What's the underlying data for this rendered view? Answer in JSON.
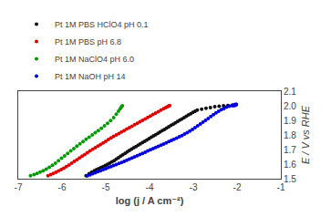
{
  "chart_data": {
    "type": "scatter",
    "xlabel": "log (j / A cm⁻²)",
    "ylabel": "E / V vs RHE",
    "xlim": [
      -7,
      -1
    ],
    "ylim": [
      1.5,
      2.1
    ],
    "xticks": [
      -7,
      -6,
      -5,
      -4,
      -3,
      -2,
      -1
    ],
    "yticks": [
      1.5,
      1.6,
      1.7,
      1.8,
      1.9,
      {
        "value": 2.0,
        "label": "2.0"
      },
      2.1
    ],
    "grid": false,
    "legend": "upper left",
    "series": [
      {
        "name": "Pt 1M PBS HClO4 pH 0.1",
        "color": "#111111",
        "x": [
          -5.45,
          -5.38,
          -5.32,
          -5.26,
          -5.21,
          -5.16,
          -5.11,
          -5.06,
          -5.01,
          -4.96,
          -4.91,
          -4.86,
          -4.81,
          -4.76,
          -4.71,
          -4.66,
          -4.61,
          -4.56,
          -4.51,
          -4.46,
          -4.41,
          -4.36,
          -4.31,
          -4.26,
          -4.21,
          -4.16,
          -4.11,
          -4.06,
          -4.01,
          -3.96,
          -3.91,
          -3.86,
          -3.81,
          -3.76,
          -3.71,
          -3.66,
          -3.61,
          -3.56,
          -3.51,
          -3.46,
          -3.41,
          -3.36,
          -3.31,
          -3.26,
          -3.21,
          -3.16,
          -3.11,
          -3.06,
          -3.01,
          -2.96,
          -2.91,
          -2.81,
          -2.71,
          -2.61,
          -2.51,
          -2.41,
          -2.31,
          -2.21,
          -2.11
        ],
        "values": [
          1.52,
          1.535,
          1.545,
          1.555,
          1.562,
          1.569,
          1.576,
          1.583,
          1.59,
          1.598,
          1.606,
          1.615,
          1.624,
          1.634,
          1.644,
          1.654,
          1.664,
          1.674,
          1.684,
          1.694,
          1.703,
          1.712,
          1.721,
          1.73,
          1.739,
          1.748,
          1.757,
          1.766,
          1.775,
          1.784,
          1.793,
          1.802,
          1.811,
          1.82,
          1.829,
          1.838,
          1.847,
          1.856,
          1.865,
          1.874,
          1.883,
          1.892,
          1.901,
          1.91,
          1.919,
          1.928,
          1.937,
          1.946,
          1.955,
          1.963,
          1.97,
          1.977,
          1.983,
          1.988,
          1.993,
          1.997,
          2.0,
          2.002,
          2.003
        ]
      },
      {
        "name": "Pt 1M PBS pH 6.8",
        "color": "#dd0000",
        "x": [
          -6.32,
          -6.26,
          -6.2,
          -6.14,
          -6.08,
          -6.02,
          -5.96,
          -5.9,
          -5.84,
          -5.78,
          -5.72,
          -5.66,
          -5.6,
          -5.54,
          -5.48,
          -5.42,
          -5.36,
          -5.3,
          -5.24,
          -5.18,
          -5.12,
          -5.06,
          -5.0,
          -4.94,
          -4.88,
          -4.82,
          -4.76,
          -4.7,
          -4.64,
          -4.58,
          -4.52,
          -4.46,
          -4.4,
          -4.34,
          -4.28,
          -4.22,
          -4.16,
          -4.1,
          -4.04,
          -3.98,
          -3.92,
          -3.86,
          -3.8,
          -3.74,
          -3.68,
          -3.63,
          -3.59,
          -3.56,
          -3.54
        ],
        "values": [
          1.52,
          1.528,
          1.536,
          1.544,
          1.553,
          1.562,
          1.572,
          1.583,
          1.594,
          1.606,
          1.618,
          1.63,
          1.642,
          1.654,
          1.666,
          1.678,
          1.69,
          1.702,
          1.713,
          1.724,
          1.735,
          1.746,
          1.757,
          1.768,
          1.779,
          1.79,
          1.8,
          1.81,
          1.82,
          1.83,
          1.84,
          1.85,
          1.86,
          1.87,
          1.88,
          1.89,
          1.9,
          1.91,
          1.92,
          1.93,
          1.94,
          1.95,
          1.96,
          1.97,
          1.98,
          1.988,
          1.994,
          1.998,
          2.001
        ]
      },
      {
        "name": "Pt 1M NaClO4 pH 6.0",
        "color": "#009900",
        "x": [
          -6.72,
          -6.64,
          -6.57,
          -6.5,
          -6.43,
          -6.36,
          -6.29,
          -6.22,
          -6.15,
          -6.08,
          -6.01,
          -5.94,
          -5.87,
          -5.8,
          -5.73,
          -5.66,
          -5.59,
          -5.52,
          -5.45,
          -5.38,
          -5.31,
          -5.24,
          -5.17,
          -5.1,
          -5.03,
          -4.96,
          -4.89,
          -4.82,
          -4.76,
          -4.71,
          -4.67,
          -4.64,
          -4.62
        ],
        "values": [
          1.52,
          1.528,
          1.536,
          1.545,
          1.555,
          1.566,
          1.578,
          1.592,
          1.607,
          1.623,
          1.64,
          1.657,
          1.674,
          1.691,
          1.707,
          1.723,
          1.739,
          1.755,
          1.77,
          1.785,
          1.8,
          1.815,
          1.83,
          1.846,
          1.862,
          1.879,
          1.898,
          1.919,
          1.942,
          1.963,
          1.98,
          1.993,
          2.0
        ]
      },
      {
        "name": "Pt 1M NaOH pH 14",
        "color": "#0000dd",
        "x": [
          -5.42,
          -5.36,
          -5.3,
          -5.24,
          -5.18,
          -5.12,
          -5.06,
          -5.0,
          -4.94,
          -4.88,
          -4.82,
          -4.76,
          -4.7,
          -4.64,
          -4.58,
          -4.52,
          -4.46,
          -4.4,
          -4.34,
          -4.28,
          -4.22,
          -4.16,
          -4.1,
          -4.04,
          -3.98,
          -3.92,
          -3.86,
          -3.8,
          -3.74,
          -3.68,
          -3.62,
          -3.56,
          -3.5,
          -3.44,
          -3.38,
          -3.32,
          -3.26,
          -3.2,
          -3.14,
          -3.08,
          -3.02,
          -2.96,
          -2.9,
          -2.84,
          -2.78,
          -2.72,
          -2.66,
          -2.6,
          -2.54,
          -2.48,
          -2.42,
          -2.36,
          -2.3,
          -2.24,
          -2.18,
          -2.12,
          -2.08,
          -2.05,
          -2.03,
          -2.02,
          -2.02,
          -2.03,
          -2.04,
          -2.06,
          -2.08
        ],
        "values": [
          1.52,
          1.527,
          1.534,
          1.541,
          1.548,
          1.555,
          1.562,
          1.569,
          1.576,
          1.583,
          1.59,
          1.597,
          1.604,
          1.611,
          1.618,
          1.626,
          1.634,
          1.642,
          1.65,
          1.658,
          1.666,
          1.674,
          1.682,
          1.69,
          1.698,
          1.706,
          1.714,
          1.722,
          1.73,
          1.738,
          1.746,
          1.754,
          1.762,
          1.77,
          1.778,
          1.787,
          1.796,
          1.806,
          1.816,
          1.827,
          1.838,
          1.85,
          1.862,
          1.875,
          1.888,
          1.9,
          1.913,
          1.926,
          1.939,
          1.952,
          1.963,
          1.973,
          1.982,
          1.99,
          1.997,
          2.002,
          2.006,
          2.008,
          2.009,
          2.009,
          2.008,
          2.006,
          2.004,
          2.002,
          2.001
        ]
      }
    ]
  }
}
